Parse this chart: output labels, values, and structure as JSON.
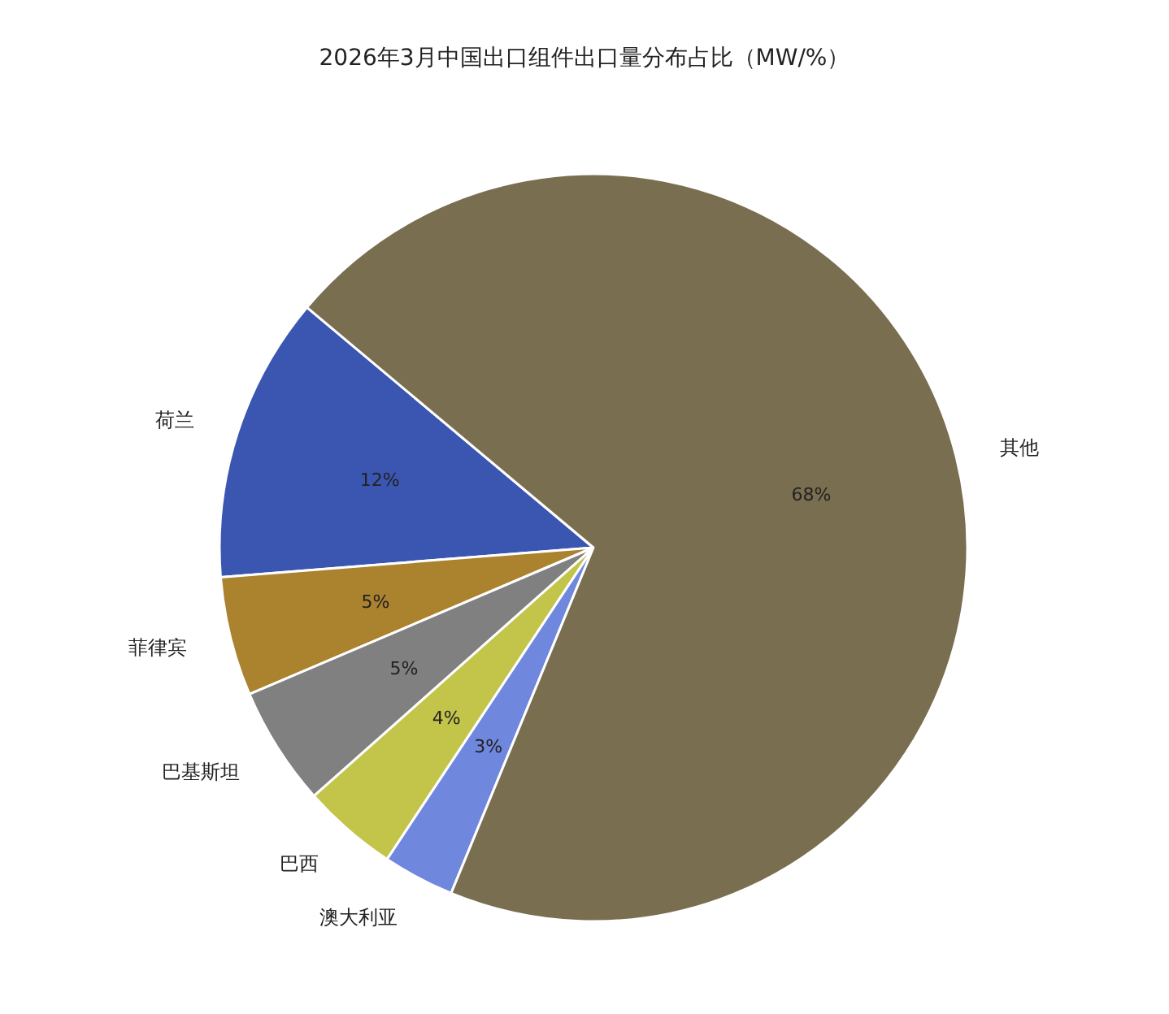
{
  "chart_data": {
    "type": "pie",
    "title": "2026年3月中国出口组件出口量分布占比（MW/%）",
    "categories": [
      "荷兰",
      "菲律宾",
      "巴基斯坦",
      "巴西",
      "澳大利亚",
      "其他"
    ],
    "values": [
      12,
      5,
      5,
      4,
      3,
      68
    ],
    "value_labels": [
      "12%",
      "5%",
      "5%",
      "4%",
      "3%",
      "68%"
    ],
    "colors": [
      "#3a56b0",
      "#ab822e",
      "#808080",
      "#c3c44a",
      "#6f87dd",
      "#7a6e50"
    ],
    "legend": false
  }
}
